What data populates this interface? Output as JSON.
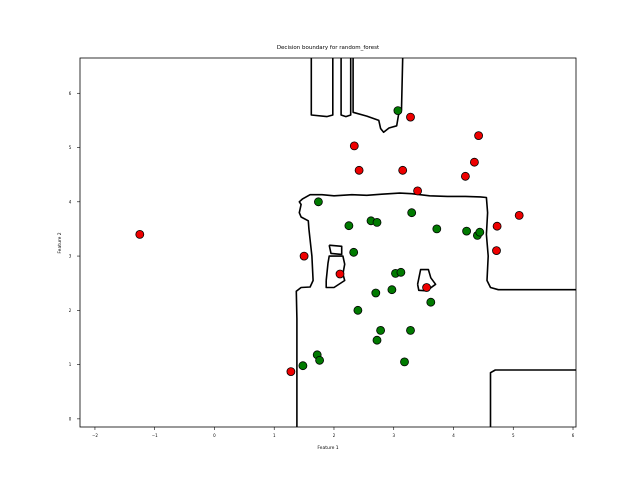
{
  "chart_data": {
    "type": "scatter",
    "title": "Decision boundary for random_forest",
    "xlabel": "Feature 1",
    "ylabel": "Feature 2",
    "xlim": [
      -2.25,
      6.05
    ],
    "ylim": [
      -0.15,
      6.65
    ],
    "xticks": [
      -2,
      -1,
      0,
      1,
      2,
      3,
      4,
      5,
      6
    ],
    "yticks": [
      0,
      1,
      2,
      3,
      4,
      5,
      6
    ],
    "grid": false,
    "colors": {
      "class_red": "#ee0000",
      "class_green": "#007a00",
      "boundary": "#000000"
    },
    "series": [
      {
        "color": "#ee0000",
        "points": [
          [
            -1.25,
            3.4
          ],
          [
            1.28,
            0.87
          ],
          [
            1.5,
            3.0
          ],
          [
            2.1,
            2.67
          ],
          [
            2.34,
            5.03
          ],
          [
            2.42,
            4.58
          ],
          [
            3.15,
            4.58
          ],
          [
            3.28,
            5.56
          ],
          [
            3.4,
            4.2
          ],
          [
            3.55,
            2.42
          ],
          [
            4.2,
            4.47
          ],
          [
            4.35,
            4.73
          ],
          [
            4.42,
            5.22
          ],
          [
            4.72,
            3.1
          ],
          [
            4.73,
            3.55
          ],
          [
            5.1,
            3.75
          ]
        ]
      },
      {
        "color": "#007a00",
        "points": [
          [
            1.48,
            0.98
          ],
          [
            1.72,
            1.18
          ],
          [
            1.76,
            1.08
          ],
          [
            1.74,
            4.0
          ],
          [
            2.25,
            3.56
          ],
          [
            2.33,
            3.07
          ],
          [
            2.4,
            2.0
          ],
          [
            2.62,
            3.65
          ],
          [
            2.72,
            3.62
          ],
          [
            2.7,
            2.32
          ],
          [
            2.72,
            1.45
          ],
          [
            2.78,
            1.63
          ],
          [
            2.97,
            2.38
          ],
          [
            3.03,
            2.68
          ],
          [
            3.12,
            2.7
          ],
          [
            3.07,
            5.68
          ],
          [
            3.18,
            1.05
          ],
          [
            3.3,
            3.8
          ],
          [
            3.28,
            1.63
          ],
          [
            3.62,
            2.15
          ],
          [
            3.72,
            3.5
          ],
          [
            4.22,
            3.46
          ],
          [
            4.4,
            3.38
          ],
          [
            4.44,
            3.44
          ]
        ]
      }
    ],
    "boundaries": [
      [
        [
          1.62,
          6.65
        ],
        [
          1.62,
          5.6
        ],
        [
          1.88,
          5.57
        ],
        [
          1.98,
          5.6
        ],
        [
          1.98,
          6.65
        ]
      ],
      [
        [
          2.12,
          6.65
        ],
        [
          2.12,
          5.6
        ],
        [
          2.2,
          5.57
        ],
        [
          2.28,
          5.6
        ],
        [
          2.28,
          6.65
        ]
      ],
      [
        [
          2.32,
          6.65
        ],
        [
          2.32,
          5.65
        ],
        [
          2.55,
          5.58
        ],
        [
          2.75,
          5.5
        ],
        [
          2.78,
          5.35
        ],
        [
          2.83,
          5.28
        ],
        [
          2.92,
          5.36
        ],
        [
          3.05,
          5.4
        ],
        [
          3.08,
          5.6
        ],
        [
          3.13,
          5.7
        ],
        [
          3.15,
          6.65
        ]
      ],
      [
        [
          1.38,
          -0.15
        ],
        [
          1.38,
          1.85
        ],
        [
          1.37,
          2.35
        ],
        [
          1.45,
          2.42
        ],
        [
          1.6,
          2.43
        ],
        [
          1.65,
          2.55
        ],
        [
          1.63,
          3.0
        ],
        [
          1.6,
          3.3
        ],
        [
          1.58,
          3.5
        ],
        [
          1.57,
          3.65
        ],
        [
          1.45,
          3.72
        ],
        [
          1.42,
          3.8
        ],
        [
          1.45,
          3.95
        ],
        [
          1.42,
          4.0
        ],
        [
          1.47,
          4.05
        ],
        [
          1.6,
          4.13
        ],
        [
          1.8,
          4.13
        ],
        [
          2.0,
          4.11
        ],
        [
          2.3,
          4.13
        ],
        [
          2.55,
          4.12
        ],
        [
          2.8,
          4.14
        ],
        [
          3.1,
          4.16
        ],
        [
          3.3,
          4.15
        ],
        [
          3.6,
          4.11
        ],
        [
          3.9,
          4.1
        ],
        [
          4.2,
          4.1
        ],
        [
          4.45,
          4.09
        ],
        [
          4.55,
          4.08
        ],
        [
          4.57,
          3.8
        ],
        [
          4.55,
          3.4
        ],
        [
          4.58,
          3.0
        ],
        [
          4.56,
          2.55
        ],
        [
          4.62,
          2.42
        ],
        [
          4.75,
          2.38
        ],
        [
          6.05,
          2.38
        ]
      ],
      [
        [
          1.92,
          3.2
        ],
        [
          2.13,
          3.18
        ],
        [
          2.13,
          3.03
        ],
        [
          1.95,
          3.05
        ],
        [
          1.92,
          3.2
        ]
      ],
      [
        [
          1.87,
          2.55
        ],
        [
          1.9,
          2.87
        ],
        [
          1.92,
          3.0
        ],
        [
          2.15,
          3.0
        ],
        [
          2.18,
          2.85
        ],
        [
          2.15,
          2.67
        ],
        [
          2.18,
          2.55
        ],
        [
          2.0,
          2.42
        ],
        [
          1.87,
          2.42
        ],
        [
          1.87,
          2.55
        ]
      ],
      [
        [
          3.4,
          2.48
        ],
        [
          3.45,
          2.75
        ],
        [
          3.58,
          2.75
        ],
        [
          3.62,
          2.6
        ],
        [
          3.7,
          2.48
        ],
        [
          3.55,
          2.36
        ],
        [
          3.42,
          2.37
        ],
        [
          3.4,
          2.48
        ]
      ],
      [
        [
          4.62,
          -0.15
        ],
        [
          4.62,
          0.85
        ],
        [
          4.7,
          0.9
        ],
        [
          6.05,
          0.9
        ]
      ]
    ]
  }
}
